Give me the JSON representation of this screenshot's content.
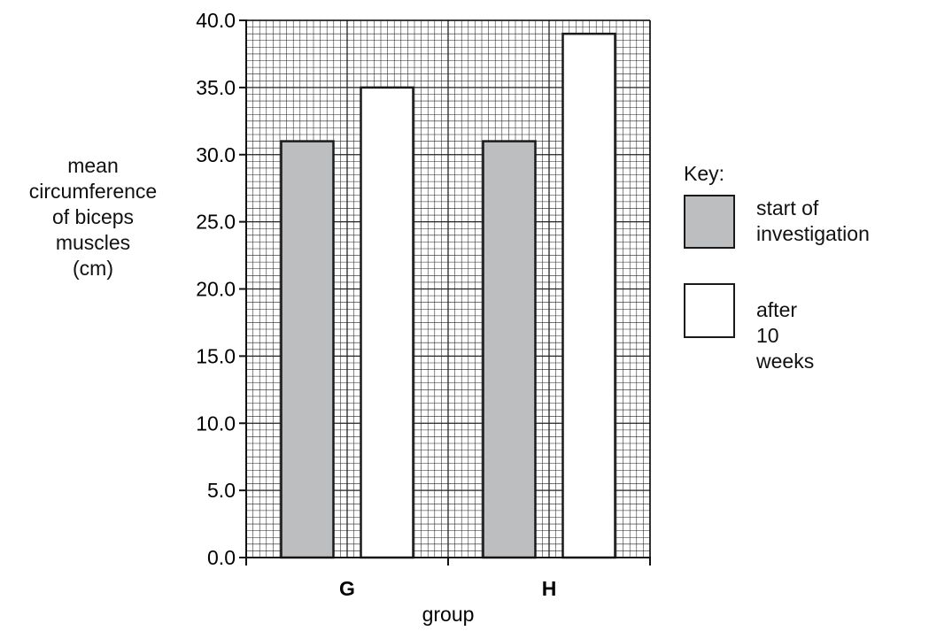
{
  "chart_data": {
    "type": "bar",
    "categories": [
      "G",
      "H"
    ],
    "series": [
      {
        "name": "start of investigation",
        "values": [
          31.0,
          31.0
        ],
        "color": "#bcbec0"
      },
      {
        "name": "after 10 weeks",
        "values": [
          35.0,
          39.0
        ],
        "color": "#ffffff"
      }
    ],
    "xlabel": "group",
    "ylabel_lines": [
      "mean",
      "circumference",
      "of biceps",
      "muscles",
      "(cm)"
    ],
    "ylim": [
      0,
      40
    ],
    "yticks": [
      "0.0",
      "5.0",
      "10.0",
      "15.0",
      "20.0",
      "25.0",
      "30.0",
      "35.0",
      "40.0"
    ],
    "grid": true,
    "legend": {
      "title": "Key:",
      "placement": "right",
      "entries": [
        {
          "label_lines": [
            "start of",
            "investigation"
          ],
          "color": "#bcbec0"
        },
        {
          "label_lines": [
            "after 10 weeks"
          ],
          "color": "#ffffff"
        }
      ]
    }
  }
}
